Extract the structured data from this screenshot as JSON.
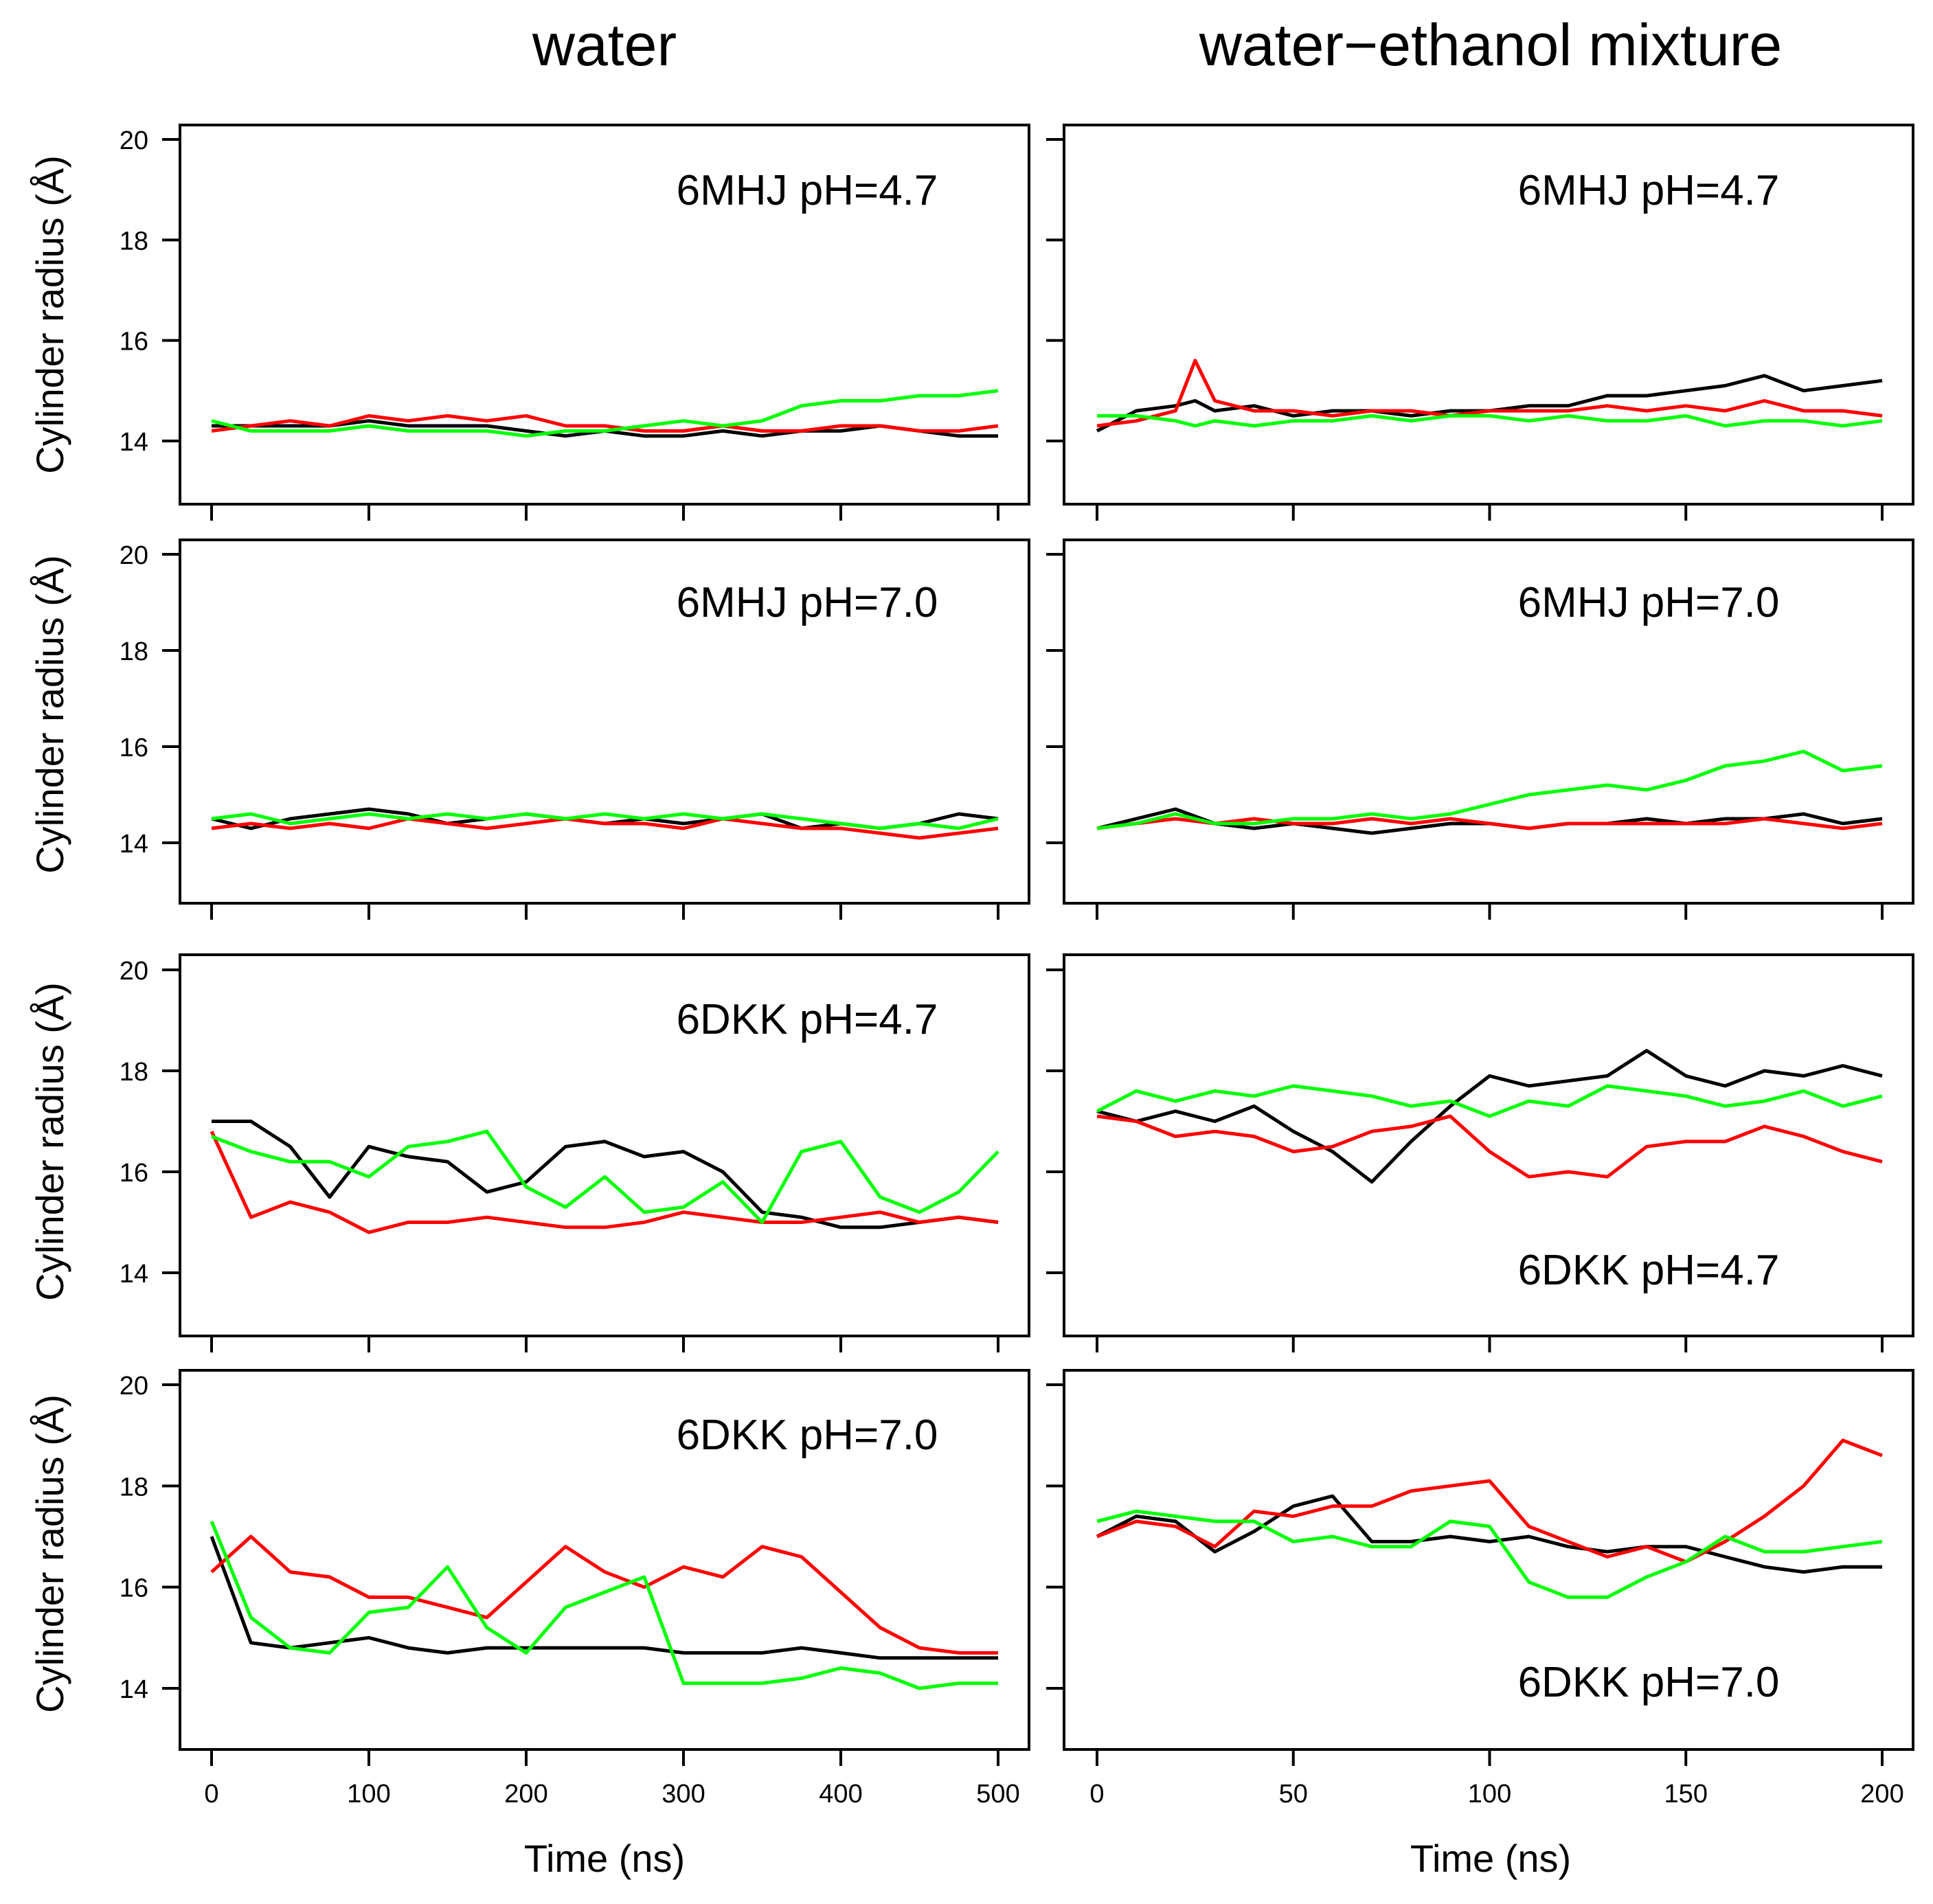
{
  "column_titles": [
    "water",
    "water−ethanol mixture"
  ],
  "y_label": "Cylinder radius (Å)",
  "x_label": "Time (ns)",
  "colors": {
    "black": "#000000",
    "red": "#ff0000",
    "green": "#00ff00"
  },
  "chart_data": [
    {
      "type": "line",
      "label": "6MHJ pH=4.7",
      "xlabel": "Time (ns)",
      "ylabel": "Cylinder radius (Å)",
      "xlim": [
        0,
        500
      ],
      "ylim": [
        13,
        20.3
      ],
      "x_ticks": [
        0,
        100,
        200,
        300,
        400,
        500
      ],
      "y_ticks": [
        14,
        16,
        18,
        20
      ],
      "x": [
        0,
        25,
        50,
        75,
        100,
        125,
        150,
        175,
        200,
        225,
        250,
        275,
        300,
        325,
        350,
        375,
        400,
        425,
        450,
        475,
        500
      ],
      "series": [
        {
          "color": "#000000",
          "values": [
            14.3,
            14.3,
            14.3,
            14.3,
            14.4,
            14.3,
            14.3,
            14.3,
            14.2,
            14.1,
            14.2,
            14.1,
            14.1,
            14.2,
            14.1,
            14.2,
            14.2,
            14.3,
            14.2,
            14.1,
            14.1
          ]
        },
        {
          "color": "#ff0000",
          "values": [
            14.2,
            14.3,
            14.4,
            14.3,
            14.5,
            14.4,
            14.5,
            14.4,
            14.5,
            14.3,
            14.3,
            14.2,
            14.2,
            14.3,
            14.2,
            14.2,
            14.3,
            14.3,
            14.2,
            14.2,
            14.3
          ]
        },
        {
          "color": "#00ff00",
          "values": [
            14.4,
            14.2,
            14.2,
            14.2,
            14.3,
            14.2,
            14.2,
            14.2,
            14.1,
            14.2,
            14.2,
            14.3,
            14.4,
            14.3,
            14.4,
            14.7,
            14.8,
            14.8,
            14.9,
            14.9,
            15.0
          ]
        }
      ]
    },
    {
      "type": "line",
      "label": "6MHJ pH=4.7",
      "xlabel": "Time (ns)",
      "ylabel": "Cylinder radius (Å)",
      "xlim": [
        0,
        200
      ],
      "ylim": [
        13,
        20.3
      ],
      "x_ticks": [
        0,
        50,
        100,
        150,
        200
      ],
      "y_ticks": [
        14,
        16,
        18,
        20
      ],
      "x": [
        0,
        10,
        20,
        25,
        30,
        40,
        50,
        60,
        70,
        80,
        90,
        100,
        110,
        120,
        130,
        140,
        150,
        160,
        170,
        180,
        190,
        200
      ],
      "series": [
        {
          "color": "#000000",
          "values": [
            14.2,
            14.6,
            14.7,
            14.8,
            14.6,
            14.7,
            14.5,
            14.6,
            14.6,
            14.5,
            14.6,
            14.6,
            14.7,
            14.7,
            14.9,
            14.9,
            15.0,
            15.1,
            15.3,
            15.0,
            15.1,
            15.2
          ]
        },
        {
          "color": "#ff0000",
          "values": [
            14.3,
            14.4,
            14.6,
            15.6,
            14.8,
            14.6,
            14.6,
            14.5,
            14.6,
            14.6,
            14.5,
            14.6,
            14.6,
            14.6,
            14.7,
            14.6,
            14.7,
            14.6,
            14.8,
            14.6,
            14.6,
            14.5
          ]
        },
        {
          "color": "#00ff00",
          "values": [
            14.5,
            14.5,
            14.4,
            14.3,
            14.4,
            14.3,
            14.4,
            14.4,
            14.5,
            14.4,
            14.5,
            14.5,
            14.4,
            14.5,
            14.4,
            14.4,
            14.5,
            14.3,
            14.4,
            14.4,
            14.3,
            14.4
          ]
        }
      ]
    },
    {
      "type": "line",
      "label": "6MHJ pH=7.0",
      "xlabel": "Time (ns)",
      "ylabel": "Cylinder radius (Å)",
      "xlim": [
        0,
        500
      ],
      "ylim": [
        13,
        20.3
      ],
      "x_ticks": [
        0,
        100,
        200,
        300,
        400,
        500
      ],
      "y_ticks": [
        14,
        16,
        18,
        20
      ],
      "x": [
        0,
        25,
        50,
        75,
        100,
        125,
        150,
        175,
        200,
        225,
        250,
        275,
        300,
        325,
        350,
        375,
        400,
        425,
        450,
        475,
        500
      ],
      "series": [
        {
          "color": "#000000",
          "values": [
            14.5,
            14.3,
            14.5,
            14.6,
            14.7,
            14.6,
            14.4,
            14.5,
            14.6,
            14.5,
            14.4,
            14.5,
            14.4,
            14.5,
            14.6,
            14.3,
            14.4,
            14.3,
            14.4,
            14.6,
            14.5
          ]
        },
        {
          "color": "#ff0000",
          "values": [
            14.3,
            14.4,
            14.3,
            14.4,
            14.3,
            14.5,
            14.4,
            14.3,
            14.4,
            14.5,
            14.4,
            14.4,
            14.3,
            14.5,
            14.4,
            14.3,
            14.3,
            14.2,
            14.1,
            14.2,
            14.3
          ]
        },
        {
          "color": "#00ff00",
          "values": [
            14.5,
            14.6,
            14.4,
            14.5,
            14.6,
            14.5,
            14.6,
            14.5,
            14.6,
            14.5,
            14.6,
            14.5,
            14.6,
            14.5,
            14.6,
            14.5,
            14.4,
            14.3,
            14.4,
            14.3,
            14.5
          ]
        }
      ]
    },
    {
      "type": "line",
      "label": "6MHJ pH=7.0",
      "xlabel": "Time (ns)",
      "ylabel": "Cylinder radius (Å)",
      "xlim": [
        0,
        200
      ],
      "ylim": [
        13,
        20.3
      ],
      "x_ticks": [
        0,
        50,
        100,
        150,
        200
      ],
      "y_ticks": [
        14,
        16,
        18,
        20
      ],
      "x": [
        0,
        10,
        20,
        30,
        40,
        50,
        60,
        70,
        80,
        90,
        100,
        110,
        120,
        130,
        140,
        150,
        160,
        170,
        180,
        190,
        200
      ],
      "series": [
        {
          "color": "#000000",
          "values": [
            14.3,
            14.5,
            14.7,
            14.4,
            14.3,
            14.4,
            14.3,
            14.2,
            14.3,
            14.4,
            14.4,
            14.3,
            14.4,
            14.4,
            14.5,
            14.4,
            14.5,
            14.5,
            14.6,
            14.4,
            14.5
          ]
        },
        {
          "color": "#ff0000",
          "values": [
            14.3,
            14.4,
            14.5,
            14.4,
            14.5,
            14.4,
            14.4,
            14.5,
            14.4,
            14.5,
            14.4,
            14.3,
            14.4,
            14.4,
            14.4,
            14.4,
            14.4,
            14.5,
            14.4,
            14.3,
            14.4
          ]
        },
        {
          "color": "#00ff00",
          "values": [
            14.3,
            14.4,
            14.6,
            14.4,
            14.4,
            14.5,
            14.5,
            14.6,
            14.5,
            14.6,
            14.8,
            15.0,
            15.1,
            15.2,
            15.1,
            15.3,
            15.6,
            15.7,
            15.9,
            15.5,
            15.6
          ]
        }
      ]
    },
    {
      "type": "line",
      "label": "6DKK pH=4.7",
      "xlabel": "Time (ns)",
      "ylabel": "Cylinder radius (Å)",
      "xlim": [
        0,
        500
      ],
      "ylim": [
        13,
        20.3
      ],
      "x_ticks": [
        0,
        100,
        200,
        300,
        400,
        500
      ],
      "y_ticks": [
        14,
        16,
        18,
        20
      ],
      "x": [
        0,
        25,
        50,
        75,
        100,
        125,
        150,
        175,
        200,
        225,
        250,
        275,
        300,
        325,
        350,
        375,
        400,
        425,
        450,
        475,
        500
      ],
      "series": [
        {
          "color": "#000000",
          "values": [
            17.0,
            17.0,
            16.5,
            15.5,
            16.5,
            16.3,
            16.2,
            15.6,
            15.8,
            16.5,
            16.6,
            16.3,
            16.4,
            16.0,
            15.2,
            15.1,
            14.9,
            14.9,
            15.0,
            15.1,
            15.0
          ]
        },
        {
          "color": "#ff0000",
          "values": [
            16.8,
            15.1,
            15.4,
            15.2,
            14.8,
            15.0,
            15.0,
            15.1,
            15.0,
            14.9,
            14.9,
            15.0,
            15.2,
            15.1,
            15.0,
            15.0,
            15.1,
            15.2,
            15.0,
            15.1,
            15.0
          ]
        },
        {
          "color": "#00ff00",
          "values": [
            16.7,
            16.4,
            16.2,
            16.2,
            15.9,
            16.5,
            16.6,
            16.8,
            15.7,
            15.3,
            15.9,
            15.2,
            15.3,
            15.8,
            15.0,
            16.4,
            16.6,
            15.5,
            15.2,
            15.6,
            16.4
          ]
        }
      ]
    },
    {
      "type": "line",
      "label": "6DKK pH=4.7",
      "xlabel": "Time (ns)",
      "ylabel": "Cylinder radius (Å)",
      "xlim": [
        0,
        200
      ],
      "ylim": [
        13,
        20.3
      ],
      "x_ticks": [
        0,
        50,
        100,
        150,
        200
      ],
      "y_ticks": [
        14,
        16,
        18,
        20
      ],
      "x": [
        0,
        10,
        20,
        30,
        40,
        50,
        60,
        70,
        80,
        90,
        100,
        110,
        120,
        130,
        140,
        150,
        160,
        170,
        180,
        190,
        200
      ],
      "series": [
        {
          "color": "#000000",
          "values": [
            17.2,
            17.0,
            17.2,
            17.0,
            17.3,
            16.8,
            16.4,
            15.8,
            16.6,
            17.3,
            17.9,
            17.7,
            17.8,
            17.9,
            18.4,
            17.9,
            17.7,
            18.0,
            17.9,
            18.1,
            17.9
          ]
        },
        {
          "color": "#ff0000",
          "values": [
            17.1,
            17.0,
            16.7,
            16.8,
            16.7,
            16.4,
            16.5,
            16.8,
            16.9,
            17.1,
            16.4,
            15.9,
            16.0,
            15.9,
            16.5,
            16.6,
            16.6,
            16.9,
            16.7,
            16.4,
            16.2
          ]
        },
        {
          "color": "#00ff00",
          "values": [
            17.2,
            17.6,
            17.4,
            17.6,
            17.5,
            17.7,
            17.6,
            17.5,
            17.3,
            17.4,
            17.1,
            17.4,
            17.3,
            17.7,
            17.6,
            17.5,
            17.3,
            17.4,
            17.6,
            17.3,
            17.5
          ]
        }
      ]
    },
    {
      "type": "line",
      "label": "6DKK pH=7.0",
      "xlabel": "Time (ns)",
      "ylabel": "Cylinder radius (Å)",
      "xlim": [
        0,
        500
      ],
      "ylim": [
        13,
        20.3
      ],
      "x_ticks": [
        0,
        100,
        200,
        300,
        400,
        500
      ],
      "y_ticks": [
        14,
        16,
        18,
        20
      ],
      "x": [
        0,
        25,
        50,
        75,
        100,
        125,
        150,
        175,
        200,
        225,
        250,
        275,
        300,
        325,
        350,
        375,
        400,
        425,
        450,
        475,
        500
      ],
      "series": [
        {
          "color": "#000000",
          "values": [
            17.0,
            14.9,
            14.8,
            14.9,
            15.0,
            14.8,
            14.7,
            14.8,
            14.8,
            14.8,
            14.8,
            14.8,
            14.7,
            14.7,
            14.7,
            14.8,
            14.7,
            14.6,
            14.6,
            14.6,
            14.6
          ]
        },
        {
          "color": "#ff0000",
          "values": [
            16.3,
            17.0,
            16.3,
            16.2,
            15.8,
            15.8,
            15.6,
            15.4,
            16.1,
            16.8,
            16.3,
            16.0,
            16.4,
            16.2,
            16.8,
            16.6,
            15.9,
            15.2,
            14.8,
            14.7,
            14.7
          ]
        },
        {
          "color": "#00ff00",
          "values": [
            17.3,
            15.4,
            14.8,
            14.7,
            15.5,
            15.6,
            16.4,
            15.2,
            14.7,
            15.6,
            15.9,
            16.2,
            14.1,
            14.1,
            14.1,
            14.2,
            14.4,
            14.3,
            14.0,
            14.1,
            14.1
          ]
        }
      ]
    },
    {
      "type": "line",
      "label": "6DKK pH=7.0",
      "xlabel": "Time (ns)",
      "ylabel": "Cylinder radius (Å)",
      "xlim": [
        0,
        200
      ],
      "ylim": [
        13,
        20.3
      ],
      "x_ticks": [
        0,
        50,
        100,
        150,
        200
      ],
      "y_ticks": [
        14,
        16,
        18,
        20
      ],
      "x": [
        0,
        10,
        20,
        30,
        40,
        50,
        60,
        70,
        80,
        90,
        100,
        110,
        120,
        130,
        140,
        150,
        160,
        170,
        180,
        190,
        200
      ],
      "series": [
        {
          "color": "#000000",
          "values": [
            17.0,
            17.4,
            17.3,
            16.7,
            17.1,
            17.6,
            17.8,
            16.9,
            16.9,
            17.0,
            16.9,
            17.0,
            16.8,
            16.7,
            16.8,
            16.8,
            16.6,
            16.4,
            16.3,
            16.4,
            16.4
          ]
        },
        {
          "color": "#ff0000",
          "values": [
            17.0,
            17.3,
            17.2,
            16.8,
            17.5,
            17.4,
            17.6,
            17.6,
            17.9,
            18.0,
            18.1,
            17.2,
            16.9,
            16.6,
            16.8,
            16.5,
            16.9,
            17.4,
            18.0,
            18.9,
            18.6
          ]
        },
        {
          "color": "#00ff00",
          "values": [
            17.3,
            17.5,
            17.4,
            17.3,
            17.3,
            16.9,
            17.0,
            16.8,
            16.8,
            17.3,
            17.2,
            16.1,
            15.8,
            15.8,
            16.2,
            16.5,
            17.0,
            16.7,
            16.7,
            16.8,
            16.9
          ]
        }
      ]
    }
  ]
}
